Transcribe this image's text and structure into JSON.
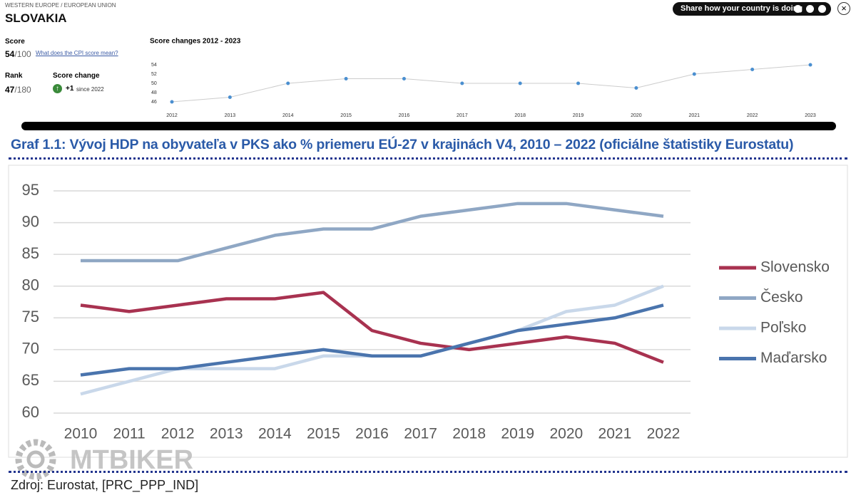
{
  "widget": {
    "region": "WESTERN EUROPE / EUROPEAN UNION",
    "country": "SLOVAKIA",
    "score_label": "Score",
    "score": 54,
    "score_max": "/100",
    "link": "What does the CPI score mean?",
    "rank_label": "Rank",
    "rank": 47,
    "rank_max": "/180",
    "change_label": "Score change",
    "change": "+1",
    "change_since": "since 2022",
    "share": "Share how your country is doing"
  },
  "chart_data": [
    {
      "type": "line",
      "title": "Score changes 2012 - 2023",
      "categories": [
        "2012",
        "2013",
        "2014",
        "2015",
        "2016",
        "2017",
        "2018",
        "2019",
        "2020",
        "2021",
        "2022",
        "2023"
      ],
      "values": [
        46,
        47,
        50,
        51,
        51,
        50,
        50,
        50,
        49,
        52,
        53,
        54
      ],
      "color": "#4a8fd0",
      "ylim": [
        46,
        54
      ],
      "yticks": [
        46,
        48,
        50,
        52,
        54
      ]
    },
    {
      "type": "line",
      "title": "Graf 1.1: Vývoj HDP na obyvateľa v PKS ako % priemeru EÚ-27 v krajinách V4, 2010 – 2022 (oficiálne štatistiky Eurostatu)",
      "categories": [
        "2010",
        "2011",
        "2012",
        "2013",
        "2014",
        "2015",
        "2016",
        "2017",
        "2018",
        "2019",
        "2020",
        "2021",
        "2022"
      ],
      "series": [
        {
          "name": "Slovensko",
          "color": "#a83250",
          "values": [
            77,
            76,
            77,
            78,
            78,
            79,
            73,
            71,
            70,
            71,
            72,
            71,
            68
          ]
        },
        {
          "name": "Česko",
          "color": "#8fa7c4",
          "values": [
            84,
            84,
            84,
            86,
            88,
            89,
            89,
            91,
            92,
            93,
            93,
            92,
            91
          ]
        },
        {
          "name": "Poľsko",
          "color": "#c9d8ea",
          "values": [
            63,
            65,
            67,
            67,
            67,
            69,
            69,
            69,
            71,
            73,
            76,
            77,
            80
          ]
        },
        {
          "name": "Maďarsko",
          "color": "#4a74ad",
          "values": [
            66,
            67,
            67,
            68,
            69,
            70,
            69,
            69,
            71,
            73,
            74,
            75,
            77
          ]
        }
      ],
      "ylim": [
        60,
        95
      ],
      "yticks": [
        60,
        65,
        70,
        75,
        80,
        85,
        90,
        95
      ],
      "grid": true,
      "legend": "right",
      "source": "Zdroj: Eurostat, [PRC_PPP_IND]"
    }
  ],
  "watermark": "MTBIKER"
}
